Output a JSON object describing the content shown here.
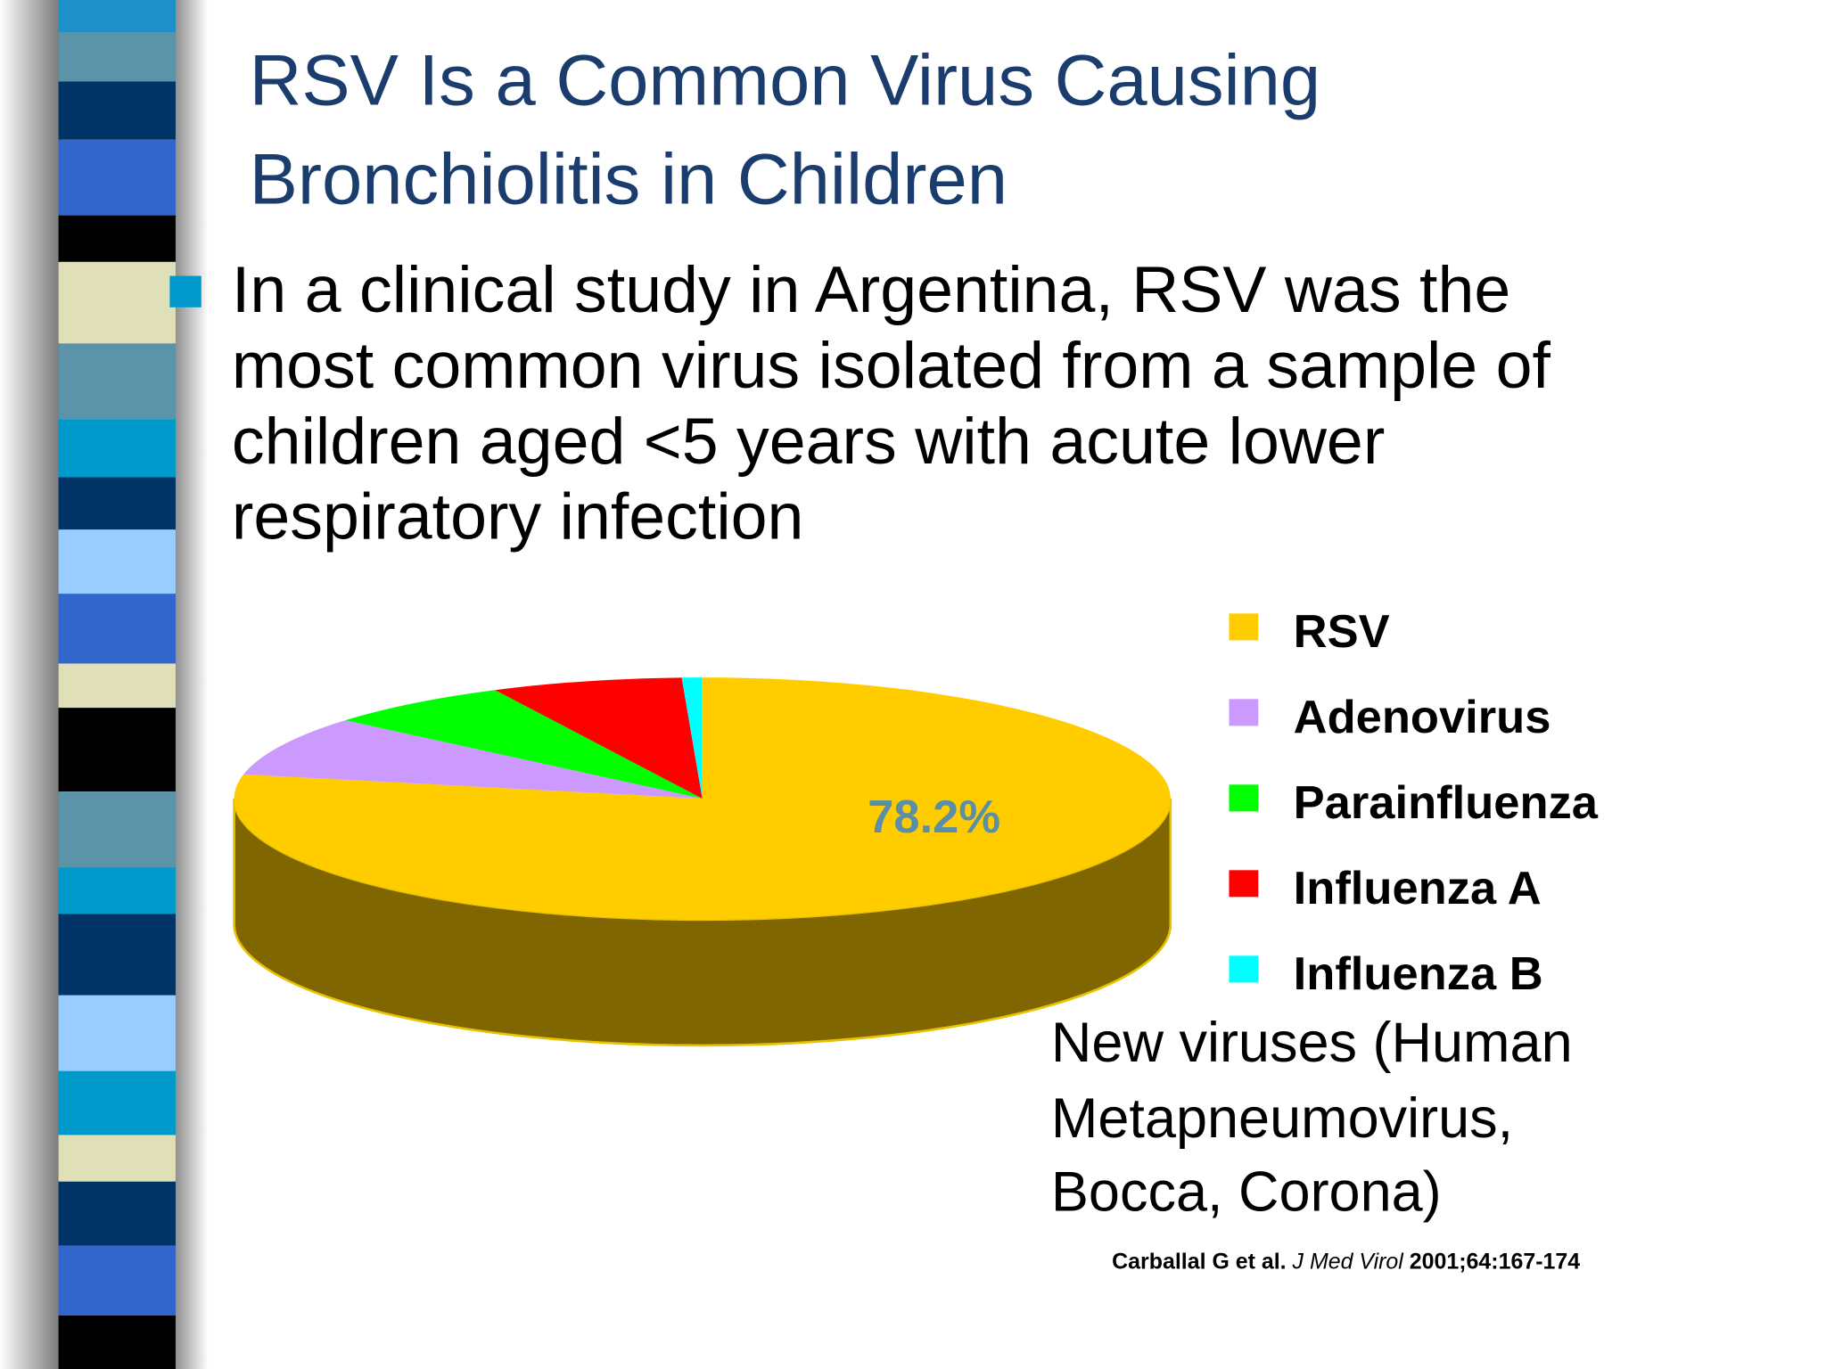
{
  "slide": {
    "title": [
      "RSV Is a Common Virus  Causing",
      "Bronchiolitis in Children"
    ],
    "bullet": [
      "In a clinical study in Argentina, RSV was the",
      "most common virus isolated from a sample of",
      "children aged <5 years with acute lower",
      "respiratory infection"
    ]
  },
  "chart_data": {
    "type": "pie",
    "categories": [
      "RSV",
      "Adenovirus",
      "Parainfluenza",
      "Influenza A",
      "Influenza B"
    ],
    "values": [
      78.2,
      8,
      6.5,
      6.6,
      0.7
    ],
    "value_labels": [
      "78.2%",
      null,
      null,
      null,
      null
    ],
    "colors": [
      "#ffcc00",
      "#cc99ff",
      "#00ff00",
      "#ff0000",
      "#00ffff"
    ],
    "side_color": "#806600",
    "three_d": true
  },
  "note": [
    "New viruses (Human",
    "Metapneumovirus,",
    "Bocca, Corona)"
  ],
  "citation": {
    "authors": "Carballal G et al.",
    "journal": "J Med Virol",
    "ref": "2001;64:167-174"
  }
}
